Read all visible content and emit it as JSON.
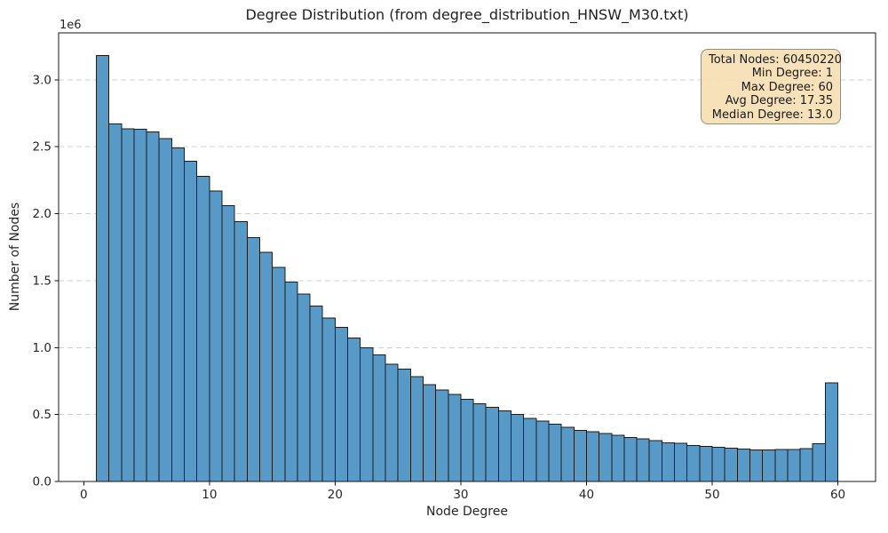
{
  "figure": {
    "title": "Degree Distribution (from degree_distribution_HNSW_M30.txt)",
    "xlabel": "Node Degree",
    "ylabel": "Number of Nodes",
    "y_offset_label": "1e6"
  },
  "stats_box": {
    "lines": [
      "Total Nodes: 60450220",
      "Min Degree: 1",
      "Max Degree: 60",
      "Avg Degree: 17.35",
      "Median Degree: 13.0"
    ]
  },
  "chart_data": {
    "type": "bar",
    "subtype": "histogram",
    "title": "Degree Distribution (from degree_distribution_HNSW_M30.txt)",
    "xlabel": "Node Degree",
    "ylabel": "Number of Nodes",
    "y_multiplier": "1e6",
    "grid": true,
    "grid_axis": "y",
    "grid_style": "dashed",
    "legend_position": "none",
    "stats_annotation": {
      "total_nodes": 60450220,
      "min_degree": 1,
      "max_degree": 60,
      "avg_degree": 17.35,
      "median_degree": 13.0
    },
    "xlim": [
      -2,
      63
    ],
    "ylim": [
      0,
      3350000
    ],
    "xtick_values": [
      0,
      10,
      20,
      30,
      40,
      50,
      60
    ],
    "xtick_labels": [
      "0",
      "10",
      "20",
      "30",
      "40",
      "50",
      "60"
    ],
    "ytick_values": [
      0,
      500000,
      1000000,
      1500000,
      2000000,
      2500000,
      3000000
    ],
    "ytick_labels": [
      "0.0",
      "0.5",
      "1.0",
      "1.5",
      "2.0",
      "2.5",
      "3.0"
    ],
    "bin_width": 1,
    "bin_left_edges": [
      1,
      2,
      3,
      4,
      5,
      6,
      7,
      8,
      9,
      10,
      11,
      12,
      13,
      14,
      15,
      16,
      17,
      18,
      19,
      20,
      21,
      22,
      23,
      24,
      25,
      26,
      27,
      28,
      29,
      30,
      31,
      32,
      33,
      34,
      35,
      36,
      37,
      38,
      39,
      40,
      41,
      42,
      43,
      44,
      45,
      46,
      47,
      48,
      49,
      50,
      51,
      52,
      53,
      54,
      55,
      56,
      57,
      58,
      59
    ],
    "counts": [
      3180000,
      2670000,
      2635000,
      2630000,
      2610000,
      2560000,
      2490000,
      2390000,
      2280000,
      2170000,
      2060000,
      1940000,
      1820000,
      1710000,
      1600000,
      1490000,
      1400000,
      1310000,
      1220000,
      1150000,
      1070000,
      1000000,
      945000,
      874000,
      839000,
      782000,
      724000,
      683000,
      650000,
      612000,
      580000,
      555000,
      526000,
      500000,
      471000,
      451000,
      427000,
      405000,
      383000,
      370000,
      359000,
      344000,
      330000,
      319000,
      305000,
      290000,
      285000,
      268000,
      262000,
      257000,
      250000,
      242000,
      235000,
      234000,
      240000,
      239000,
      246000,
      282000,
      735000
    ],
    "colors": {
      "bar_fill": "#5799c7",
      "bar_edge": "#1c1c1c",
      "grid": "#d0d0d0",
      "spine": "#1a1a1a",
      "text": "#262626",
      "stats_box_bg": "#f5deb3",
      "stats_box_border": "#8f8f8f"
    }
  }
}
